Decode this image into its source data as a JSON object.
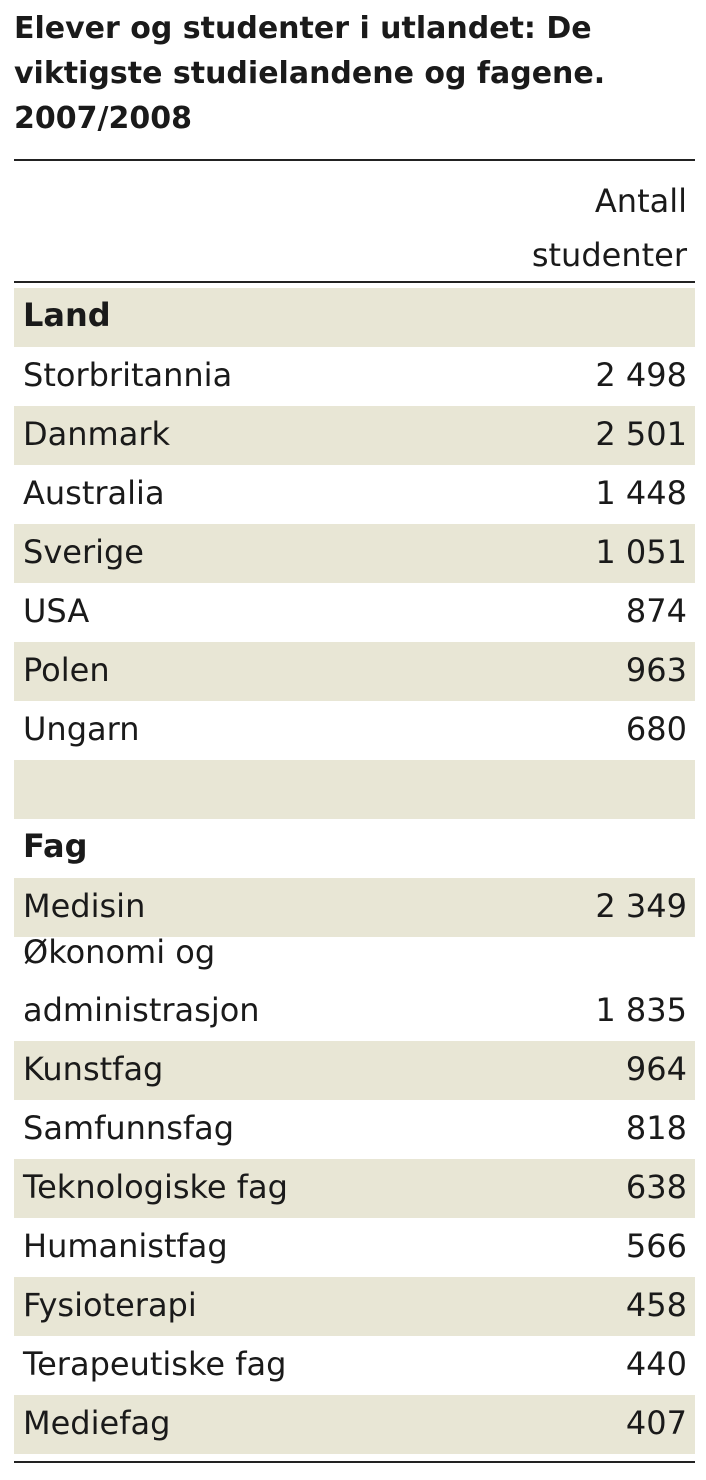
{
  "chart_data": {
    "type": "table",
    "title_lines": [
      "Elever og studenter i utlandet: De",
      "viktigste studielandene og fagene.",
      "2007/2008"
    ],
    "column_header_lines": [
      "Antall",
      "studenter"
    ],
    "sections": [
      {
        "heading": "Land",
        "rows": [
          {
            "label": "Storbritannia",
            "value": "2 498"
          },
          {
            "label": "Danmark",
            "value": "2 501"
          },
          {
            "label": "Australia",
            "value": "1 448"
          },
          {
            "label": "Sverige",
            "value": "1 051"
          },
          {
            "label": "USA",
            "value": "874"
          },
          {
            "label": "Polen",
            "value": "963"
          },
          {
            "label": "Ungarn",
            "value": "680"
          }
        ]
      },
      {
        "heading": "Fag",
        "rows": [
          {
            "label": "Medisin",
            "value": "2 349"
          },
          {
            "label_lines": [
              "Økonomi og",
              "administrasjon"
            ],
            "value": "1 835"
          },
          {
            "label": "Kunstfag",
            "value": "964"
          },
          {
            "label": "Samfunnsfag",
            "value": "818"
          },
          {
            "label": "Teknologiske fag",
            "value": "638"
          },
          {
            "label": "Humanistfag",
            "value": "566"
          },
          {
            "label": "Fysioterapi",
            "value": "458"
          },
          {
            "label": "Terapeutiske fag",
            "value": "440"
          },
          {
            "label": "Mediefag",
            "value": "407"
          }
        ]
      }
    ],
    "colors": {
      "shade": "#e8e6d5",
      "rule": "#222222",
      "text": "#1a1a1a"
    }
  }
}
